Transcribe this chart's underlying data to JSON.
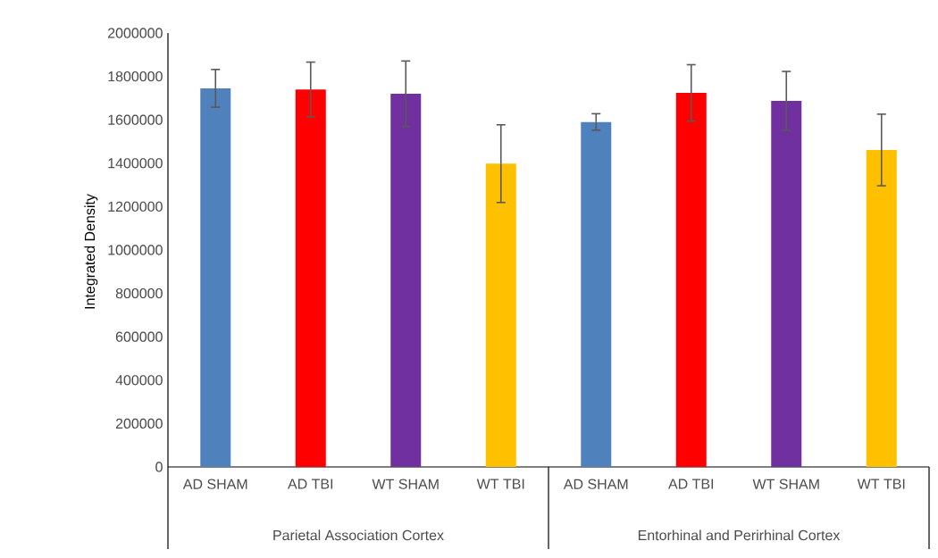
{
  "chart_data": {
    "type": "bar",
    "ylabel": "Integrated Density",
    "categories": [
      "AD SHAM",
      "AD TBI",
      "WT SHAM",
      "WT TBI",
      "AD SHAM",
      "AD TBI",
      "WT SHAM",
      "WT TBI"
    ],
    "values": [
      1745000,
      1740000,
      1720000,
      1398000,
      1590000,
      1724000,
      1687000,
      1461000
    ],
    "errors": [
      87000,
      126000,
      151000,
      179000,
      38000,
      130000,
      136000,
      165000
    ],
    "colors": [
      "#4f81bd",
      "#ff0000",
      "#7030a0",
      "#ffc000",
      "#4f81bd",
      "#ff0000",
      "#7030a0",
      "#ffc000"
    ],
    "ylim": [
      0,
      2000000
    ],
    "yticks": [
      0,
      200000,
      400000,
      600000,
      800000,
      1000000,
      1200000,
      1400000,
      1600000,
      1800000,
      2000000
    ],
    "annotations": [
      "Parietal Association Cortex",
      "Entorhinal and Perirhinal Cortex"
    ],
    "grid": false
  }
}
